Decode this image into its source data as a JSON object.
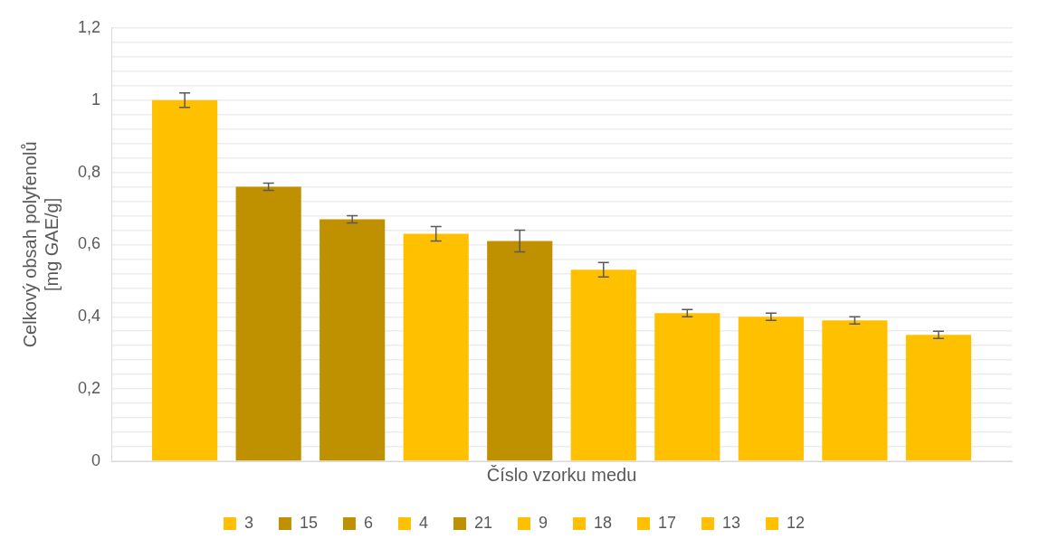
{
  "chart_data": {
    "type": "bar",
    "xlabel": "Číslo vzorku medu",
    "ylabel": "Celkový obsah polyfenolů\n[mg GAE/g]",
    "categories": [
      null
    ],
    "series": [
      {
        "name": "3",
        "color": "#ffc000",
        "values": [
          1.0
        ],
        "errors": [
          0.02
        ]
      },
      {
        "name": "15",
        "color": "#bf9000",
        "values": [
          0.76
        ],
        "errors": [
          0.01
        ]
      },
      {
        "name": "6",
        "color": "#bf9000",
        "values": [
          0.67
        ],
        "errors": [
          0.01
        ]
      },
      {
        "name": "4",
        "color": "#ffc000",
        "values": [
          0.63
        ],
        "errors": [
          0.02
        ]
      },
      {
        "name": "21",
        "color": "#bf9000",
        "values": [
          0.61
        ],
        "errors": [
          0.03
        ]
      },
      {
        "name": "9",
        "color": "#ffc000",
        "values": [
          0.53
        ],
        "errors": [
          0.02
        ]
      },
      {
        "name": "18",
        "color": "#ffc000",
        "values": [
          0.41
        ],
        "errors": [
          0.01
        ]
      },
      {
        "name": "17",
        "color": "#ffc000",
        "values": [
          0.4
        ],
        "errors": [
          0.01
        ]
      },
      {
        "name": "13",
        "color": "#ffc000",
        "values": [
          0.39
        ],
        "errors": [
          0.01
        ]
      },
      {
        "name": "12",
        "color": "#ffc000",
        "values": [
          0.35
        ],
        "errors": [
          0.01
        ]
      }
    ],
    "ylim": [
      0,
      1.2
    ],
    "yticks": [
      {
        "value": 0,
        "label": "0"
      },
      {
        "value": 0.04,
        "label": null
      },
      {
        "value": 0.08,
        "label": null
      },
      {
        "value": 0.12,
        "label": null
      },
      {
        "value": 0.16,
        "label": null
      },
      {
        "value": 0.2,
        "label": "0,2"
      },
      {
        "value": 0.24,
        "label": null
      },
      {
        "value": 0.28,
        "label": null
      },
      {
        "value": 0.32,
        "label": null
      },
      {
        "value": 0.36,
        "label": null
      },
      {
        "value": 0.4,
        "label": "0,4"
      },
      {
        "value": 0.44,
        "label": null
      },
      {
        "value": 0.48,
        "label": null
      },
      {
        "value": 0.52,
        "label": null
      },
      {
        "value": 0.56,
        "label": null
      },
      {
        "value": 0.6,
        "label": "0,6"
      },
      {
        "value": 0.64,
        "label": null
      },
      {
        "value": 0.68,
        "label": null
      },
      {
        "value": 0.72,
        "label": null
      },
      {
        "value": 0.76,
        "label": null
      },
      {
        "value": 0.8,
        "label": "0,8"
      },
      {
        "value": 0.84,
        "label": null
      },
      {
        "value": 0.88,
        "label": null
      },
      {
        "value": 0.92,
        "label": null
      },
      {
        "value": 0.96,
        "label": null
      },
      {
        "value": 1,
        "label": "1"
      },
      {
        "value": 1.04,
        "label": null
      },
      {
        "value": 1.08,
        "label": null
      },
      {
        "value": 1.12,
        "label": null
      },
      {
        "value": 1.16,
        "label": null
      },
      {
        "value": 1.2,
        "label": "1,2"
      }
    ],
    "grid": "y",
    "legend": "bottom"
  }
}
